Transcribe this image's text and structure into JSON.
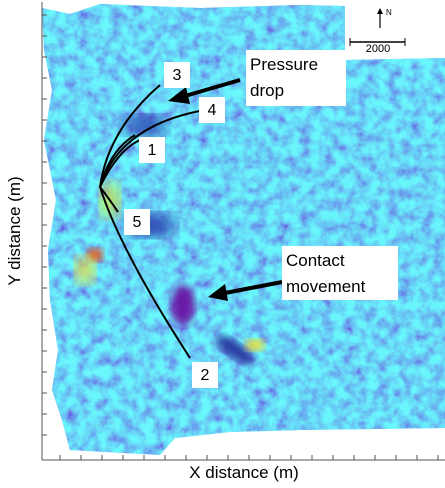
{
  "axes": {
    "x_label": "X distance (m)",
    "y_label": "Y distance (m)"
  },
  "annotations": {
    "pressure": [
      "Pressure",
      "drop"
    ],
    "contact": [
      "Contact",
      "movement"
    ]
  },
  "wells": [
    "1",
    "2",
    "3",
    "4",
    "5"
  ],
  "scale_bar": {
    "label": "2000",
    "north": "N"
  }
}
